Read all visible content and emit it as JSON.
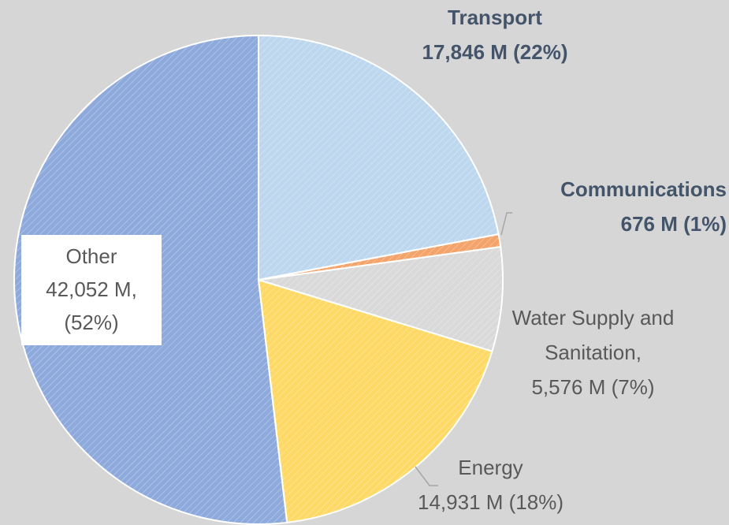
{
  "chart_data": {
    "type": "pie",
    "categories": [
      "Transport",
      "Communications",
      "Water Supply and Sanitation,",
      "Energy",
      "Other"
    ],
    "values": [
      17846,
      676,
      5576,
      14931,
      42052
    ],
    "value_labels": [
      "17,846 M (22%)",
      "676 M (1%)",
      "5,576 M (7%)",
      "14,931 M (18%)",
      "42,052 M, (52%)"
    ],
    "colors": [
      "#bdd7ee",
      "#f4a46a",
      "#d9d9d9",
      "#ffd966",
      "#8eaadc"
    ]
  }
}
